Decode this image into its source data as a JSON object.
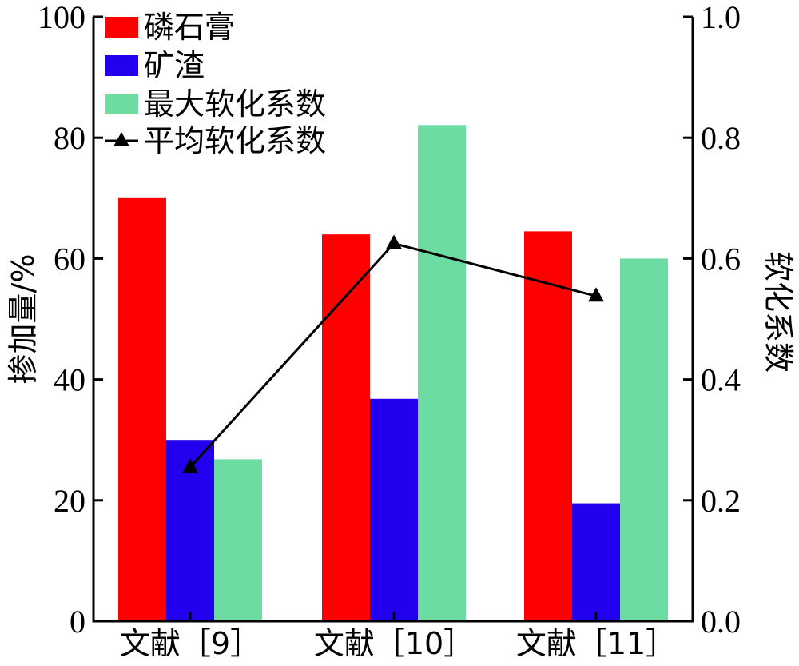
{
  "chart_data": {
    "type": "bar",
    "categories": [
      "文献［9］",
      "文献［10］",
      "文献［11］"
    ],
    "series": [
      {
        "name": "磷石膏",
        "axis": "left",
        "color": "#ff0000",
        "values": [
          70,
          64,
          64.5
        ]
      },
      {
        "name": "矿渣",
        "axis": "left",
        "color": "#2200ee",
        "values": [
          30,
          36.8,
          19.5
        ]
      },
      {
        "name": "最大软化系数",
        "axis": "right",
        "color": "#6ddca3",
        "values": [
          0.268,
          0.821,
          0.6
        ]
      }
    ],
    "line_series": {
      "name": "平均软化系数",
      "axis": "right",
      "color": "#000000",
      "marker": "triangle",
      "values": [
        0.255,
        0.625,
        0.538
      ]
    },
    "ylabel": "掺加量/%",
    "ylim": [
      0,
      100
    ],
    "yticks": [
      "0",
      "20",
      "40",
      "60",
      "80",
      "100"
    ],
    "y2label": "软化系数",
    "y2lim": [
      0,
      1
    ],
    "y2ticks": [
      "0.0",
      "0.2",
      "0.4",
      "0.6",
      "0.8",
      "1.0"
    ],
    "legend_position": "top-left",
    "grid": false
  }
}
